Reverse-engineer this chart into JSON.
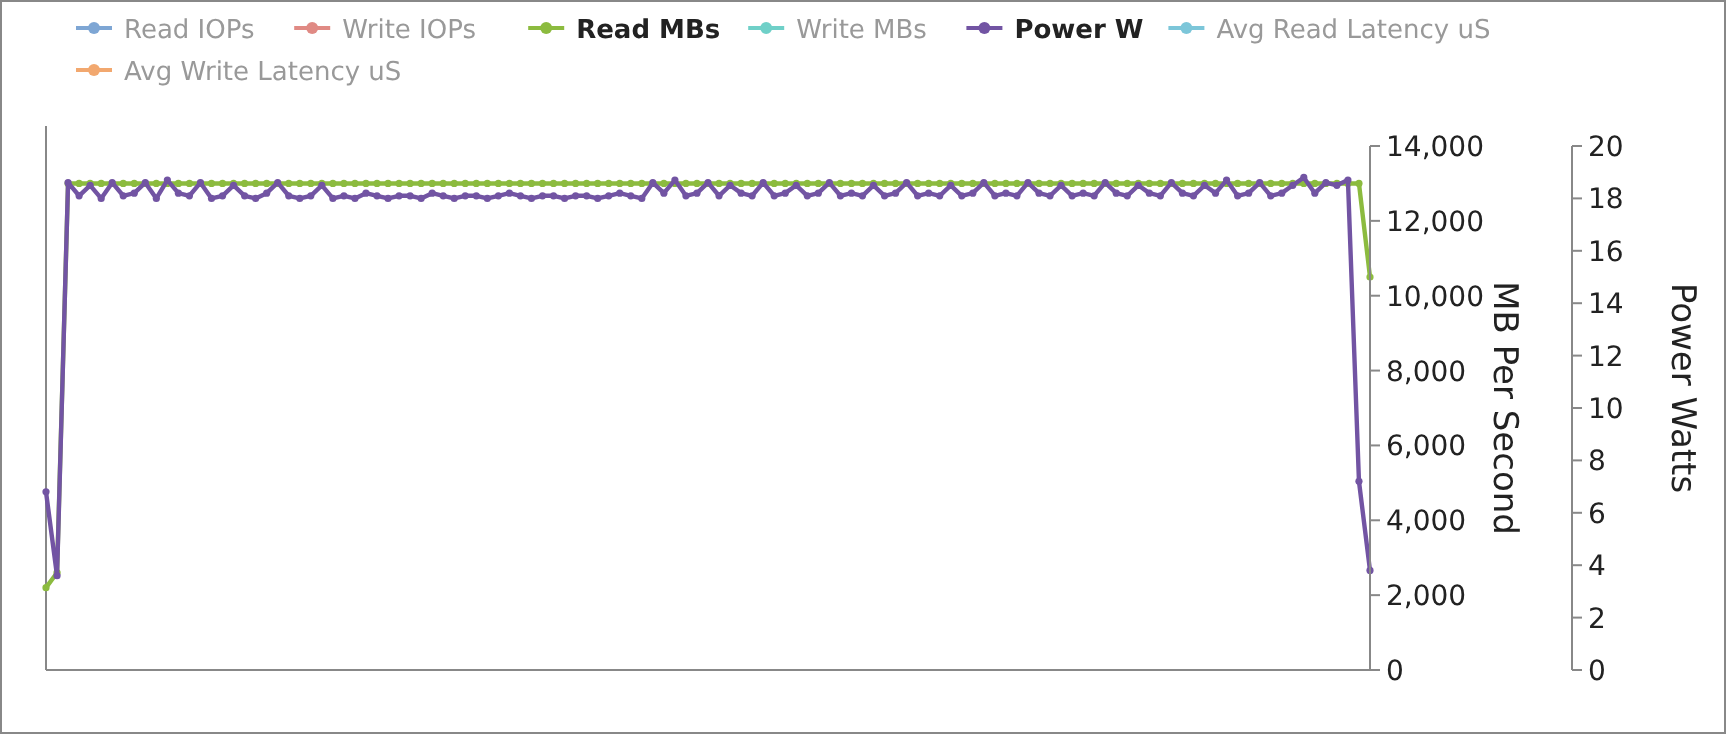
{
  "chart_data": {
    "type": "line",
    "categories": [
      null,
      null,
      null,
      null,
      null,
      null,
      null,
      null,
      null,
      null,
      null,
      null,
      null,
      null,
      null,
      null,
      null,
      null,
      null,
      null,
      null,
      null,
      null,
      null,
      null,
      null,
      null,
      null,
      null,
      null,
      null,
      null,
      null,
      null,
      null,
      null,
      null,
      null,
      null,
      null,
      null,
      null,
      null,
      null,
      null,
      null,
      null,
      null,
      null,
      null,
      null,
      null,
      null,
      null,
      null,
      null,
      null,
      null,
      null,
      null,
      null,
      null,
      null,
      null,
      null,
      null,
      null,
      null,
      null,
      null,
      null,
      null,
      null,
      null,
      null,
      null,
      null,
      null,
      null,
      null,
      null,
      null,
      null,
      null,
      null,
      null,
      null,
      null,
      null,
      null,
      null,
      null,
      null,
      null,
      null,
      null,
      null,
      null,
      null,
      null,
      null,
      null,
      null,
      null,
      null,
      null,
      null,
      null,
      null,
      null,
      null,
      null,
      null,
      null,
      null,
      null,
      null,
      null,
      null,
      null,
      null
    ],
    "ylabel": "MB Per Second",
    "y2label": "Power Watts",
    "ylim": [
      0,
      14000
    ],
    "yticks": [
      {
        "value": 0,
        "label": "0"
      },
      {
        "value": 2000,
        "label": "2,000"
      },
      {
        "value": 4000,
        "label": "4,000"
      },
      {
        "value": 6000,
        "label": "6,000"
      },
      {
        "value": 8000,
        "label": "8,000"
      },
      {
        "value": 10000,
        "label": "10,000"
      },
      {
        "value": 12000,
        "label": "12,000"
      },
      {
        "value": 14000,
        "label": "14,000"
      }
    ],
    "y2lim": [
      0,
      20
    ],
    "y2ticks": [
      0,
      2,
      4,
      6,
      8,
      10,
      12,
      14,
      16,
      18,
      20
    ],
    "tick_labels": "y",
    "grid": false,
    "legend": "top",
    "marker": "circle",
    "line_style": "solid",
    "series": [
      {
        "name": "Read IOPs",
        "color": "#7ea6d4",
        "values": [
          null,
          null,
          null,
          null,
          null,
          null,
          null,
          null,
          null,
          null,
          null,
          null,
          null,
          null,
          null,
          null,
          null,
          null,
          null,
          null,
          null,
          null,
          null,
          null,
          null,
          null,
          null,
          null,
          null,
          null,
          null,
          null,
          null,
          null,
          null,
          null,
          null,
          null,
          null,
          null,
          null,
          null,
          null,
          null,
          null,
          null,
          null,
          null,
          null,
          null,
          null,
          null,
          null,
          null,
          null,
          null,
          null,
          null,
          null,
          null,
          null,
          null,
          null,
          null,
          null,
          null,
          null,
          null,
          null,
          null,
          null,
          null,
          null,
          null,
          null,
          null,
          null,
          null,
          null,
          null,
          null,
          null,
          null,
          null,
          null,
          null,
          null,
          null,
          null,
          null,
          null,
          null,
          null,
          null,
          null,
          null,
          null,
          null,
          null,
          null,
          null,
          null,
          null,
          null,
          null,
          null,
          null,
          null,
          null,
          null,
          null,
          null,
          null,
          null,
          null,
          null,
          null,
          null,
          null,
          null,
          null
        ]
      },
      {
        "name": "Write IOPs",
        "color": "#e08a84",
        "values": [
          null,
          null,
          null,
          null,
          null,
          null,
          null,
          null,
          null,
          null,
          null,
          null,
          null,
          null,
          null,
          null,
          null,
          null,
          null,
          null,
          null,
          null,
          null,
          null,
          null,
          null,
          null,
          null,
          null,
          null,
          null,
          null,
          null,
          null,
          null,
          null,
          null,
          null,
          null,
          null,
          null,
          null,
          null,
          null,
          null,
          null,
          null,
          null,
          null,
          null,
          null,
          null,
          null,
          null,
          null,
          null,
          null,
          null,
          null,
          null,
          null,
          null,
          null,
          null,
          null,
          null,
          null,
          null,
          null,
          null,
          null,
          null,
          null,
          null,
          null,
          null,
          null,
          null,
          null,
          null,
          null,
          null,
          null,
          null,
          null,
          null,
          null,
          null,
          null,
          null,
          null,
          null,
          null,
          null,
          null,
          null,
          null,
          null,
          null,
          null,
          null,
          null,
          null,
          null,
          null,
          null,
          null,
          null,
          null,
          null,
          null,
          null,
          null,
          null,
          null,
          null,
          null,
          null,
          null,
          null,
          null
        ]
      },
      {
        "name": "Read MBs",
        "color": "#8cbb3f",
        "values": [
          2200,
          2600,
          13000,
          13000,
          13000,
          13000,
          13000,
          13000,
          13000,
          13000,
          13000,
          13000,
          13000,
          13000,
          13000,
          13000,
          13000,
          13000,
          13000,
          13000,
          13000,
          13000,
          13000,
          13000,
          13000,
          13000,
          13000,
          13000,
          13000,
          13000,
          13000,
          13000,
          13000,
          13000,
          13000,
          13000,
          13000,
          13000,
          13000,
          13000,
          13000,
          13000,
          13000,
          13000,
          13000,
          13000,
          13000,
          13000,
          13000,
          13000,
          13000,
          13000,
          13000,
          13000,
          13000,
          13000,
          13000,
          13000,
          13000,
          13000,
          13000,
          13000,
          13000,
          13000,
          13000,
          13000,
          13000,
          13000,
          13000,
          13000,
          13000,
          13000,
          13000,
          13000,
          13000,
          13000,
          13000,
          13000,
          13000,
          13000,
          13000,
          13000,
          13000,
          13000,
          13000,
          13000,
          13000,
          13000,
          13000,
          13000,
          13000,
          13000,
          13000,
          13000,
          13000,
          13000,
          13000,
          13000,
          13000,
          13000,
          13000,
          13000,
          13000,
          13000,
          13000,
          13000,
          13000,
          13000,
          13000,
          13000,
          13000,
          13000,
          13000,
          13000,
          13000,
          13000,
          13000,
          13000,
          13000,
          13000,
          10500
        ]
      },
      {
        "name": "Write MBs",
        "color": "#6fd0c8",
        "values": [
          null,
          null,
          null,
          null,
          null,
          null,
          null,
          null,
          null,
          null,
          null,
          null,
          null,
          null,
          null,
          null,
          null,
          null,
          null,
          null,
          null,
          null,
          null,
          null,
          null,
          null,
          null,
          null,
          null,
          null,
          null,
          null,
          null,
          null,
          null,
          null,
          null,
          null,
          null,
          null,
          null,
          null,
          null,
          null,
          null,
          null,
          null,
          null,
          null,
          null,
          null,
          null,
          null,
          null,
          null,
          null,
          null,
          null,
          null,
          null,
          null,
          null,
          null,
          null,
          null,
          null,
          null,
          null,
          null,
          null,
          null,
          null,
          null,
          null,
          null,
          null,
          null,
          null,
          null,
          null,
          null,
          null,
          null,
          null,
          null,
          null,
          null,
          null,
          null,
          null,
          null,
          null,
          null,
          null,
          null,
          null,
          null,
          null,
          null,
          null,
          null,
          null,
          null,
          null,
          null,
          null,
          null,
          null,
          null,
          null,
          null,
          null,
          null,
          null,
          null,
          null,
          null,
          null,
          null,
          null,
          null
        ]
      },
      {
        "name": "Power W",
        "color": "#7254a3",
        "axis": "y2",
        "values": [
          6.8,
          3.6,
          18.6,
          18.1,
          18.5,
          18.0,
          18.6,
          18.1,
          18.2,
          18.6,
          18.0,
          18.7,
          18.2,
          18.1,
          18.6,
          18.0,
          18.1,
          18.5,
          18.1,
          18.0,
          18.2,
          18.6,
          18.1,
          18.0,
          18.1,
          18.5,
          18.0,
          18.1,
          18.0,
          18.2,
          18.1,
          18.0,
          18.1,
          18.1,
          18.0,
          18.2,
          18.1,
          18.0,
          18.1,
          18.1,
          18.0,
          18.1,
          18.2,
          18.1,
          18.0,
          18.1,
          18.1,
          18.0,
          18.1,
          18.1,
          18.0,
          18.1,
          18.2,
          18.1,
          18.0,
          18.6,
          18.2,
          18.7,
          18.1,
          18.2,
          18.6,
          18.1,
          18.5,
          18.2,
          18.1,
          18.6,
          18.1,
          18.2,
          18.5,
          18.1,
          18.2,
          18.6,
          18.1,
          18.2,
          18.1,
          18.5,
          18.1,
          18.2,
          18.6,
          18.1,
          18.2,
          18.1,
          18.5,
          18.1,
          18.2,
          18.6,
          18.1,
          18.2,
          18.1,
          18.6,
          18.2,
          18.1,
          18.5,
          18.1,
          18.2,
          18.1,
          18.6,
          18.2,
          18.1,
          18.5,
          18.2,
          18.1,
          18.6,
          18.2,
          18.1,
          18.5,
          18.2,
          18.7,
          18.1,
          18.2,
          18.6,
          18.1,
          18.2,
          18.5,
          18.8,
          18.2,
          18.6,
          18.5,
          18.7,
          7.2,
          3.8
        ]
      },
      {
        "name": "Avg Read Latency uS",
        "color": "#7cc6d9",
        "values": [
          null,
          null,
          null,
          null,
          null,
          null,
          null,
          null,
          null,
          null,
          null,
          null,
          null,
          null,
          null,
          null,
          null,
          null,
          null,
          null,
          null,
          null,
          null,
          null,
          null,
          null,
          null,
          null,
          null,
          null,
          null,
          null,
          null,
          null,
          null,
          null,
          null,
          null,
          null,
          null,
          null,
          null,
          null,
          null,
          null,
          null,
          null,
          null,
          null,
          null,
          null,
          null,
          null,
          null,
          null,
          null,
          null,
          null,
          null,
          null,
          null,
          null,
          null,
          null,
          null,
          null,
          null,
          null,
          null,
          null,
          null,
          null,
          null,
          null,
          null,
          null,
          null,
          null,
          null,
          null,
          null,
          null,
          null,
          null,
          null,
          null,
          null,
          null,
          null,
          null,
          null,
          null,
          null,
          null,
          null,
          null,
          null,
          null,
          null,
          null,
          null,
          null,
          null,
          null,
          null,
          null,
          null,
          null,
          null,
          null,
          null,
          null,
          null,
          null,
          null,
          null,
          null,
          null,
          null,
          null,
          null
        ]
      },
      {
        "name": "Avg Write Latency uS",
        "color": "#f2a86f",
        "values": [
          null,
          null,
          null,
          null,
          null,
          null,
          null,
          null,
          null,
          null,
          null,
          null,
          null,
          null,
          null,
          null,
          null,
          null,
          null,
          null,
          null,
          null,
          null,
          null,
          null,
          null,
          null,
          null,
          null,
          null,
          null,
          null,
          null,
          null,
          null,
          null,
          null,
          null,
          null,
          null,
          null,
          null,
          null,
          null,
          null,
          null,
          null,
          null,
          null,
          null,
          null,
          null,
          null,
          null,
          null,
          null,
          null,
          null,
          null,
          null,
          null,
          null,
          null,
          null,
          null,
          null,
          null,
          null,
          null,
          null,
          null,
          null,
          null,
          null,
          null,
          null,
          null,
          null,
          null,
          null,
          null,
          null,
          null,
          null,
          null,
          null,
          null,
          null,
          null,
          null,
          null,
          null,
          null,
          null,
          null,
          null,
          null,
          null,
          null,
          null,
          null,
          null,
          null,
          null,
          null,
          null,
          null,
          null,
          null,
          null,
          null,
          null,
          null,
          null,
          null,
          null,
          null,
          null,
          null,
          null,
          null
        ]
      }
    ]
  }
}
